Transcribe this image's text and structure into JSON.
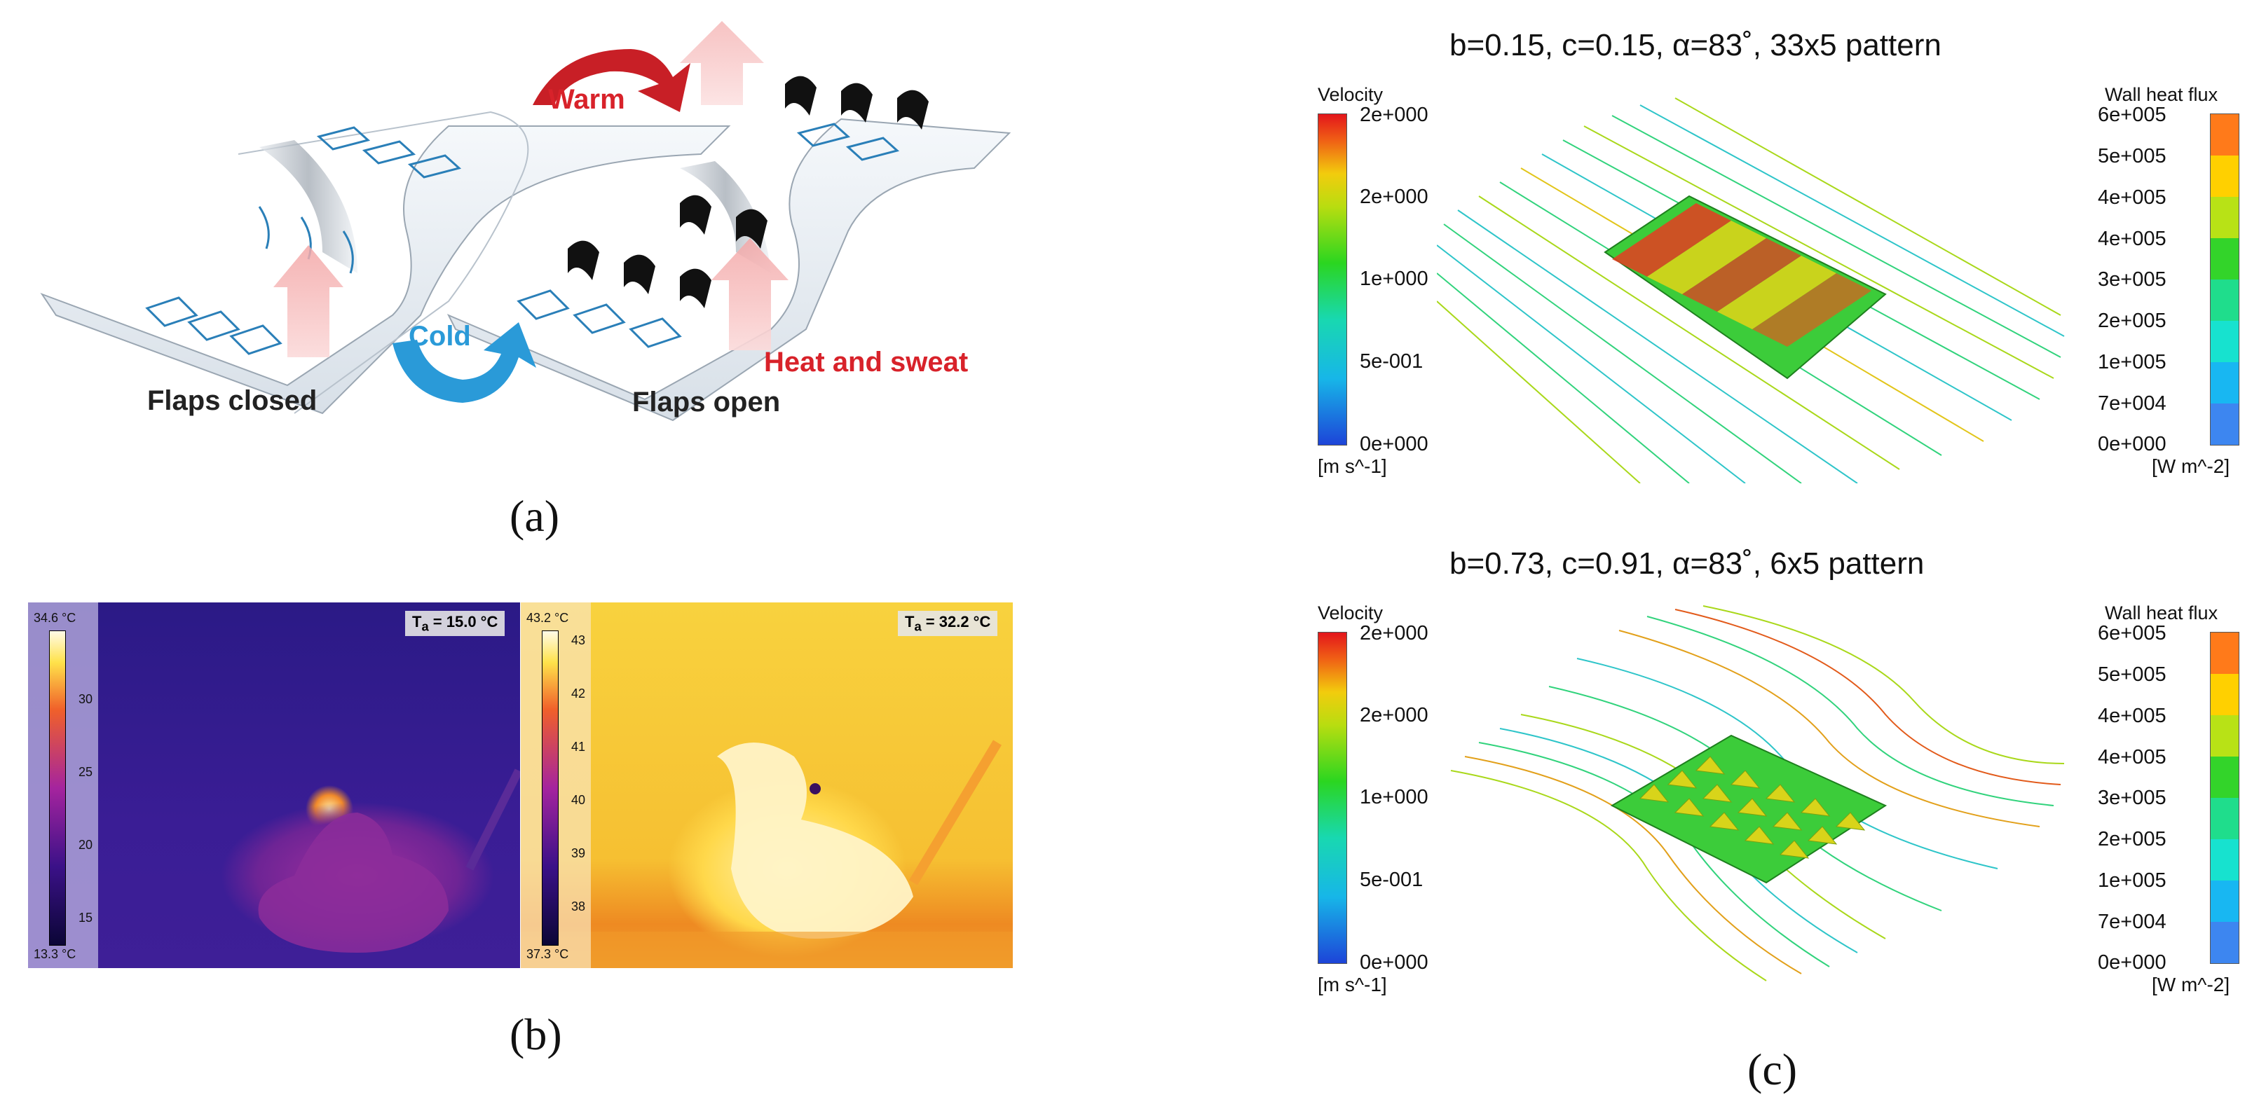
{
  "panel_a": {
    "caption": "(a)",
    "labels": {
      "warm": "Warm",
      "cold": "Cold",
      "heat_sweat": "Heat and sweat",
      "flaps_closed": "Flaps closed",
      "flaps_open": "Flaps open"
    },
    "colors": {
      "warm": "#d8222a",
      "cold": "#2a9ad8",
      "arrow_pink": "#f7c2c2"
    }
  },
  "panel_b": {
    "caption": "(b)",
    "left": {
      "ta": "15.0 °C",
      "scale_max": "34.6 °C",
      "scale_min": "13.3 °C",
      "ticks": [
        "30",
        "25",
        "20",
        "15"
      ]
    },
    "right": {
      "ta": "32.2 °C",
      "scale_max": "43.2 °C",
      "scale_min": "37.3 °C",
      "ticks": [
        "43",
        "42",
        "41",
        "40",
        "39",
        "38"
      ]
    }
  },
  "panel_c": {
    "caption": "(c)",
    "plots": [
      {
        "title": "b=0.15, c=0.15, α=83˚, 33x5 pattern",
        "velocity": {
          "title": "Velocity",
          "unit": "[m s^-1]",
          "ticks": [
            "2e+000",
            "2e+000",
            "1e+000",
            "5e-001",
            "0e+000"
          ]
        },
        "heat_flux": {
          "title": "Wall heat flux",
          "unit": "[W m^-2]",
          "ticks": [
            "6e+005",
            "5e+005",
            "4e+005",
            "4e+005",
            "3e+005",
            "2e+005",
            "1e+005",
            "7e+004",
            "0e+000"
          ]
        }
      },
      {
        "title": "b=0.73, c=0.91, α=83˚, 6x5 pattern",
        "velocity": {
          "title": "Velocity",
          "unit": "[m s^-1]",
          "ticks": [
            "2e+000",
            "2e+000",
            "1e+000",
            "5e-001",
            "0e+000"
          ]
        },
        "heat_flux": {
          "title": "Wall heat flux",
          "unit": "[W m^-2]",
          "ticks": [
            "6e+005",
            "5e+005",
            "4e+005",
            "4e+005",
            "3e+005",
            "2e+005",
            "1e+005",
            "7e+004",
            "0e+000"
          ]
        }
      }
    ]
  }
}
